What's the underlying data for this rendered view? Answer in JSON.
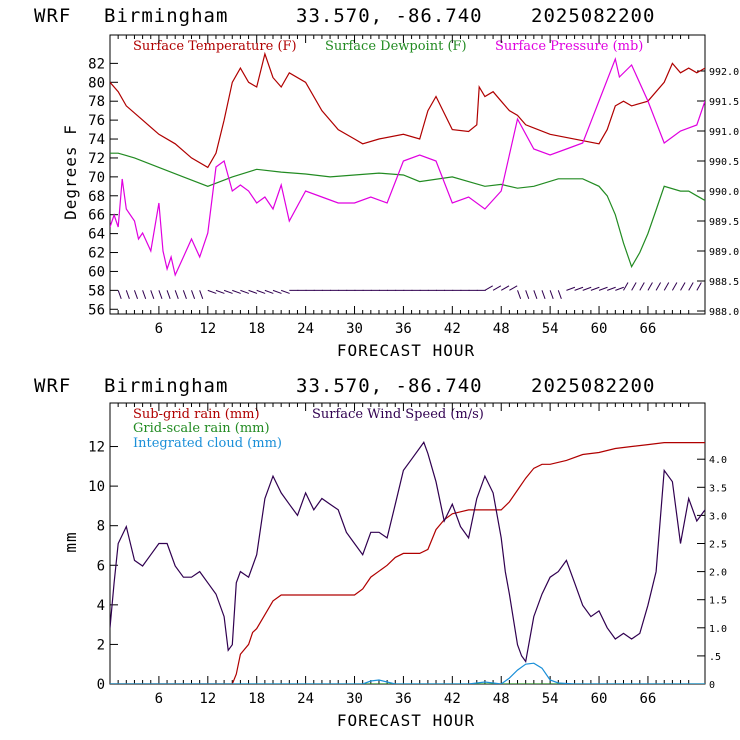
{
  "chart_data": [
    {
      "type": "line",
      "header": {
        "model": "WRF",
        "location": "Birmingham",
        "coords": "33.570, -86.740",
        "run": "2025082200"
      },
      "xlabel": "FORECAST HOUR",
      "ylabel": "Degrees F",
      "xlim": [
        0,
        73
      ],
      "ylim": [
        55.5,
        85
      ],
      "xticks": [
        "6",
        "12",
        "18",
        "24",
        "30",
        "36",
        "42",
        "48",
        "54",
        "60",
        "66"
      ],
      "yticks": [
        "56",
        "58",
        "60",
        "62",
        "64",
        "66",
        "68",
        "70",
        "72",
        "74",
        "76",
        "78",
        "80",
        "82"
      ],
      "y2lim": [
        987.95,
        992.6
      ],
      "y2ticks": [
        "988.0",
        "988.5",
        "989.0",
        "989.5",
        "990.0",
        "990.5",
        "991.0",
        "991.5",
        "992.0"
      ],
      "colors": {
        "temp": "#b00000",
        "dew": "#228b22",
        "pres": "#e000e0",
        "wind": "#300050"
      },
      "series": [
        {
          "name": "Surface Temperature (F)",
          "color": "#b00000",
          "axis": "left",
          "x": [
            0,
            1,
            2,
            4,
            6,
            8,
            10,
            12,
            13,
            14,
            15,
            16,
            17,
            18,
            19,
            20,
            21,
            22,
            24,
            26,
            28,
            30,
            31,
            33,
            36,
            38,
            39,
            40,
            42,
            44,
            45,
            45.3,
            46,
            47,
            48,
            49,
            50,
            51,
            54,
            60,
            61,
            62,
            63,
            64,
            66,
            68,
            69,
            70,
            71,
            72,
            73
          ],
          "y": [
            80,
            79,
            77.5,
            76,
            74.5,
            73.5,
            72,
            71,
            72.5,
            76,
            80,
            81.5,
            80,
            79.5,
            83,
            80.5,
            79.5,
            81,
            80,
            77,
            75,
            74,
            73.5,
            74,
            74.5,
            74,
            77,
            78.5,
            75,
            74.8,
            75.5,
            79.5,
            78.5,
            79,
            78,
            77,
            76.5,
            75.5,
            74.5,
            73.5,
            75,
            77.5,
            78,
            77.5,
            78,
            80,
            82,
            81,
            81.5,
            81,
            81.5
          ]
        },
        {
          "name": "Surface Dewpoint (F)",
          "color": "#228b22",
          "axis": "left",
          "x": [
            0,
            1,
            3,
            6,
            9,
            12,
            15,
            18,
            21,
            24,
            27,
            30,
            33,
            36,
            38,
            42,
            46,
            48,
            50,
            52,
            55,
            58,
            60,
            61,
            62,
            63,
            64,
            65,
            66,
            67,
            68,
            70,
            71,
            72,
            73
          ],
          "y": [
            72.5,
            72.5,
            72,
            71,
            70,
            69,
            70,
            70.8,
            70.5,
            70.3,
            70,
            70.2,
            70.4,
            70.2,
            69.5,
            70,
            69,
            69.2,
            68.8,
            69,
            69.8,
            69.8,
            69,
            68,
            66,
            63,
            60.5,
            62,
            64,
            66.5,
            69,
            68.5,
            68.5,
            68,
            67.5
          ]
        },
        {
          "name": "Surface Pressure (mb)",
          "color": "#e000e0",
          "axis": "right",
          "x": [
            0,
            0.5,
            1,
            1.5,
            2,
            3,
            3.5,
            4,
            5,
            6,
            6.5,
            7,
            7.5,
            8,
            9,
            10,
            11,
            12,
            13,
            14,
            15,
            16,
            17,
            18,
            19,
            20,
            21,
            22,
            24,
            26,
            28,
            30,
            32,
            34,
            36,
            38,
            40,
            42,
            44,
            46,
            48,
            50,
            52,
            54,
            56,
            58,
            60,
            62,
            62.5,
            64,
            66,
            68,
            70,
            72,
            73
          ],
          "y": [
            989.4,
            989.6,
            989.4,
            990.2,
            989.7,
            989.5,
            989.2,
            989.3,
            989.0,
            989.8,
            989.0,
            988.7,
            988.9,
            988.6,
            988.9,
            989.2,
            988.9,
            989.3,
            990.4,
            990.5,
            990.0,
            990.1,
            990.0,
            989.8,
            989.9,
            989.7,
            990.1,
            989.5,
            990,
            989.9,
            989.8,
            989.8,
            989.9,
            989.8,
            990.5,
            990.6,
            990.5,
            989.8,
            989.9,
            989.7,
            990.0,
            991.2,
            990.7,
            990.6,
            990.7,
            990.8,
            991.5,
            992.2,
            991.9,
            992.1,
            991.5,
            990.8,
            991,
            991.1,
            991.5
          ]
        },
        {
          "name": "Wind barbs",
          "color": "#300050",
          "axis": "left",
          "symbol": "barb",
          "x": [
            1,
            2,
            3,
            4,
            5,
            6,
            7,
            8,
            9,
            10,
            11,
            12,
            13,
            14,
            15,
            16,
            17,
            18,
            19,
            20,
            21,
            22,
            23,
            24,
            25,
            26,
            27,
            28,
            29,
            30,
            31,
            32,
            33,
            34,
            35,
            36,
            37,
            38,
            39,
            40,
            41,
            42,
            43,
            44,
            45,
            46,
            47,
            48,
            49,
            50,
            51,
            52,
            53,
            54,
            55,
            56,
            57,
            58,
            59,
            60,
            61,
            62,
            63,
            64,
            65,
            66,
            67,
            68,
            69,
            70,
            71,
            72
          ],
          "y": [
            58,
            58,
            58,
            58,
            58,
            58,
            58,
            58,
            58,
            58,
            58,
            58,
            58,
            58,
            58,
            58,
            58,
            58,
            58,
            58,
            58,
            58,
            58,
            58,
            58,
            58,
            58,
            58,
            58,
            58,
            58,
            58,
            58,
            58,
            58,
            58,
            58,
            58,
            58,
            58,
            58,
            58,
            58,
            58,
            58,
            58,
            58,
            58,
            58,
            58,
            58,
            58,
            58,
            58,
            58,
            58,
            58,
            58,
            58,
            58,
            58,
            58,
            58,
            58,
            58,
            58,
            58,
            58,
            58,
            58,
            58,
            58
          ]
        }
      ]
    },
    {
      "type": "line",
      "header": {
        "model": "WRF",
        "location": "Birmingham",
        "coords": "33.570, -86.740",
        "run": "2025082200"
      },
      "xlabel": "FORECAST HOUR",
      "ylabel": "mm",
      "xlim": [
        0,
        73
      ],
      "ylim": [
        0,
        14.2
      ],
      "xticks": [
        "6",
        "12",
        "18",
        "24",
        "30",
        "36",
        "42",
        "48",
        "54",
        "60",
        "66"
      ],
      "yticks": [
        "0",
        "2",
        "4",
        "6",
        "8",
        "10",
        "12"
      ],
      "y2lim": [
        0,
        5
      ],
      "y2ticks": [
        "0",
        ".5",
        "1.0",
        "1.5",
        "2.0",
        "2.5",
        "3.0",
        "3.5",
        "4.0"
      ],
      "series": [
        {
          "name": "Sub-grid rain (mm)",
          "color": "#b00000",
          "axis": "left",
          "x": [
            0,
            15,
            15.5,
            16,
            17,
            17.5,
            18,
            19,
            20,
            21,
            22,
            30,
            31,
            32,
            33,
            34,
            35,
            36,
            37,
            38,
            39,
            40,
            41,
            42,
            43,
            44,
            45,
            46,
            47,
            48,
            49,
            50,
            51,
            52,
            53,
            54,
            56,
            58,
            60,
            62,
            64,
            66,
            68,
            70,
            73
          ],
          "y": [
            0,
            0,
            0.5,
            1.5,
            2.0,
            2.6,
            2.8,
            3.5,
            4.2,
            4.5,
            4.5,
            4.5,
            4.8,
            5.4,
            5.7,
            6.0,
            6.4,
            6.6,
            6.6,
            6.6,
            6.8,
            7.8,
            8.3,
            8.6,
            8.7,
            8.8,
            8.8,
            8.8,
            8.8,
            8.8,
            9.2,
            9.8,
            10.4,
            10.9,
            11.1,
            11.1,
            11.3,
            11.6,
            11.7,
            11.9,
            12.0,
            12.1,
            12.2,
            12.2,
            12.2
          ]
        },
        {
          "name": "Grid-scale rain (mm)",
          "color": "#228b22",
          "axis": "left",
          "x": [
            0,
            73
          ],
          "y": [
            0,
            0
          ]
        },
        {
          "name": "Integrated cloud (mm)",
          "color": "#1a8fd8",
          "axis": "left",
          "x": [
            0,
            31,
            32,
            33,
            34,
            35,
            36,
            44,
            45,
            46,
            47,
            48,
            49,
            50,
            51,
            52,
            53,
            54,
            55,
            57,
            73
          ],
          "y": [
            0,
            0,
            0.15,
            0.2,
            0.1,
            0,
            0,
            0,
            0.05,
            0.1,
            0.05,
            0,
            0.3,
            0.7,
            1.0,
            1.05,
            0.8,
            0.2,
            0.05,
            0,
            0
          ]
        },
        {
          "name": "Surface Wind Speed (m/s)",
          "color": "#300050",
          "axis": "right",
          "x": [
            0,
            0.5,
            1,
            2,
            3,
            4,
            5,
            6,
            7,
            8,
            9,
            10,
            11,
            12,
            13,
            14,
            14.5,
            15,
            15.5,
            16,
            17,
            18,
            19,
            20,
            21,
            22,
            23,
            24,
            25,
            26,
            27,
            28,
            29,
            30,
            31,
            32,
            33,
            34,
            35,
            36,
            37,
            38,
            38.5,
            39,
            40,
            41,
            42,
            43,
            44,
            45,
            46,
            47,
            48,
            48.5,
            49,
            50,
            50.5,
            51,
            52,
            53,
            54,
            55,
            56,
            57,
            58,
            59,
            60,
            61,
            62,
            63,
            64,
            65,
            66,
            67,
            68,
            69,
            70,
            71,
            72,
            73
          ],
          "y": [
            1.0,
            1.8,
            2.5,
            2.8,
            2.2,
            2.1,
            2.3,
            2.5,
            2.5,
            2.1,
            1.9,
            1.9,
            2.0,
            1.8,
            1.6,
            1.2,
            0.6,
            0.7,
            1.8,
            2.0,
            1.9,
            2.3,
            3.3,
            3.7,
            3.4,
            3.2,
            3.0,
            3.4,
            3.1,
            3.3,
            3.2,
            3.1,
            2.7,
            2.5,
            2.3,
            2.7,
            2.7,
            2.6,
            3.2,
            3.8,
            4.0,
            4.2,
            4.3,
            4.1,
            3.6,
            2.9,
            3.2,
            2.8,
            2.6,
            3.3,
            3.7,
            3.4,
            2.6,
            2.0,
            1.6,
            0.7,
            0.5,
            0.4,
            1.2,
            1.6,
            1.9,
            2.0,
            2.2,
            1.8,
            1.4,
            1.2,
            1.3,
            1.0,
            0.8,
            0.9,
            0.8,
            0.9,
            1.4,
            2.0,
            3.8,
            3.6,
            2.5,
            3.3,
            2.9,
            3.1
          ]
        }
      ]
    }
  ]
}
